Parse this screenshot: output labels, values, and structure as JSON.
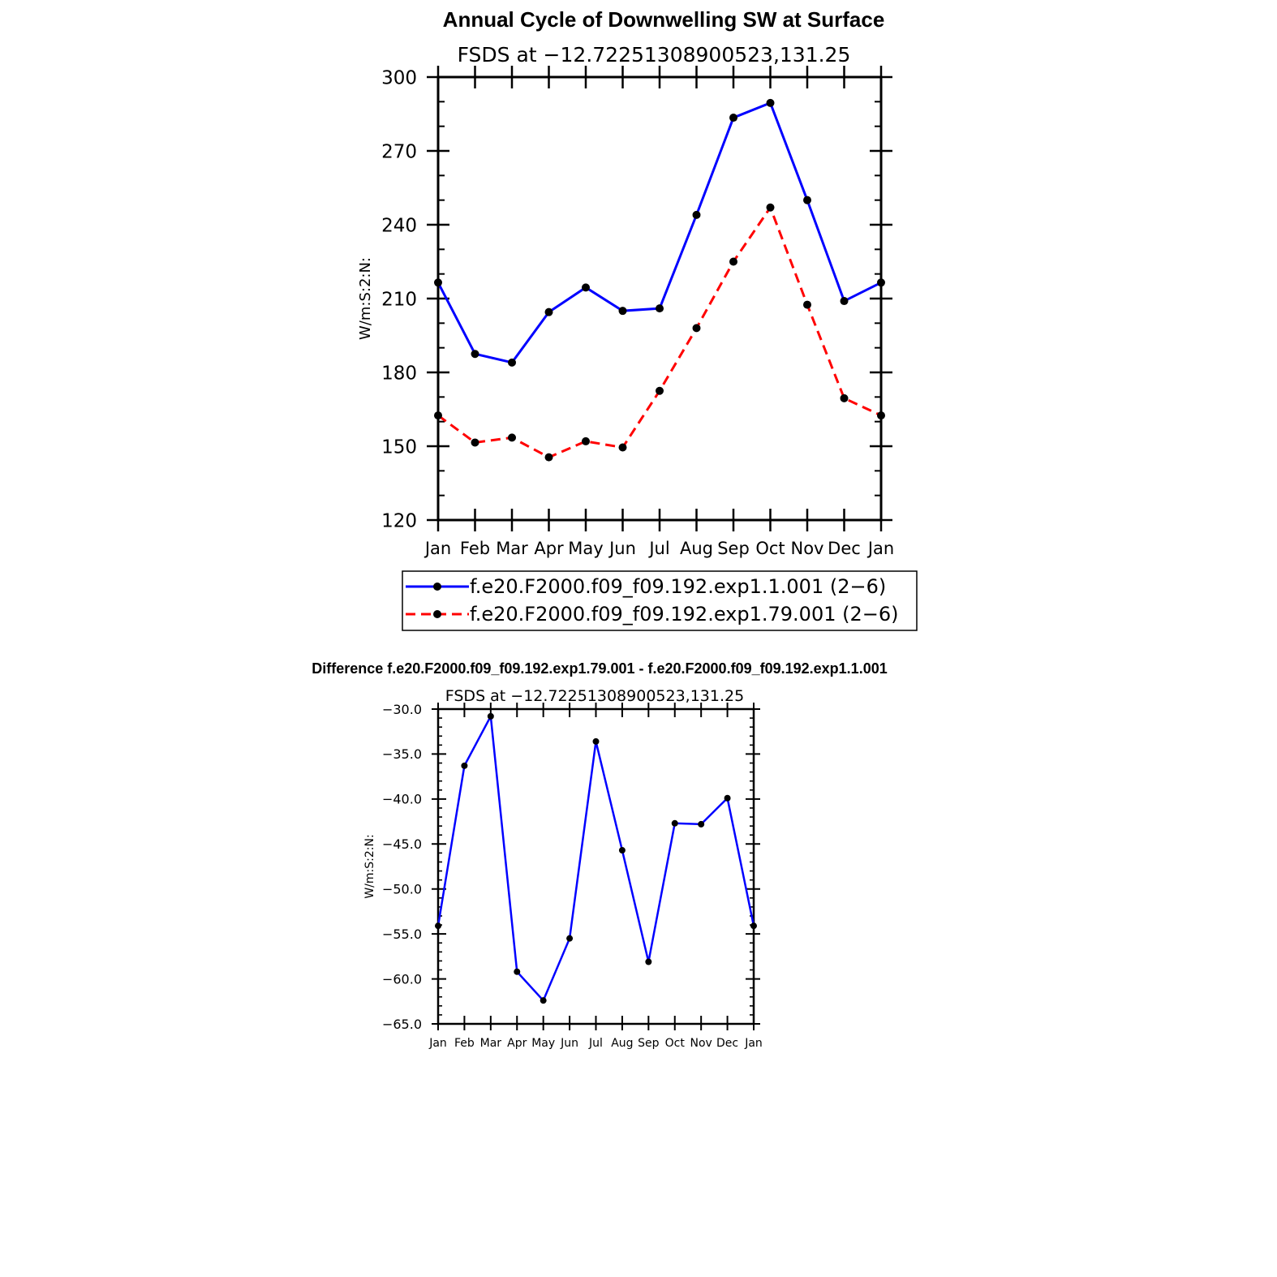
{
  "chart_data": [
    {
      "type": "line",
      "title": "Annual Cycle of Downwelling SW at Surface",
      "subtitle": "FSDS at −12.72251308900523,131.25",
      "ylabel": "W/m:S:2:N:",
      "xlabel": "",
      "categories": [
        "Jan",
        "Feb",
        "Mar",
        "Apr",
        "May",
        "Jun",
        "Jul",
        "Aug",
        "Sep",
        "Oct",
        "Nov",
        "Dec",
        "Jan"
      ],
      "ylim": [
        120,
        300
      ],
      "yticks": [
        "300",
        "270",
        "240",
        "210",
        "180",
        "150",
        "120"
      ],
      "series": [
        {
          "name": "f.e20.F2000.f09_f09.192.exp1.1.001 (2−6)",
          "color": "#0000ff",
          "dash": "solid",
          "values": [
            216.5,
            187.5,
            184.0,
            204.5,
            214.5,
            205.0,
            206.0,
            244.0,
            283.5,
            289.5,
            250.0,
            209.0,
            216.5
          ]
        },
        {
          "name": "f.e20.F2000.f09_f09.192.exp1.79.001 (2−6)",
          "color": "#ff0000",
          "dash": "dashed",
          "values": [
            162.5,
            151.5,
            153.5,
            145.5,
            152.0,
            149.5,
            172.5,
            198.0,
            225.0,
            247.0,
            207.5,
            169.5,
            162.5
          ]
        }
      ],
      "legend_position": "below"
    },
    {
      "type": "line",
      "title": "Difference f.e20.F2000.f09_f09.192.exp1.79.001 - f.e20.F2000.f09_f09.192.exp1.1.001",
      "subtitle": "FSDS at −12.72251308900523,131.25",
      "ylabel": "W/m:S:2:N:",
      "xlabel": "",
      "categories": [
        "Jan",
        "Feb",
        "Mar",
        "Apr",
        "May",
        "Jun",
        "Jul",
        "Aug",
        "Sep",
        "Oct",
        "Nov",
        "Dec",
        "Jan"
      ],
      "ylim": [
        -65,
        -30
      ],
      "yticks": [
        "−30.0",
        "−35.0",
        "−40.0",
        "−45.0",
        "−50.0",
        "−55.0",
        "−60.0",
        "−65.0"
      ],
      "series": [
        {
          "color": "#0000ff",
          "dash": "solid",
          "values": [
            -54.1,
            -36.3,
            -30.8,
            -59.2,
            -62.4,
            -55.5,
            -33.6,
            -45.7,
            -58.1,
            -42.7,
            -42.8,
            -39.9,
            -54.1
          ]
        }
      ]
    }
  ]
}
